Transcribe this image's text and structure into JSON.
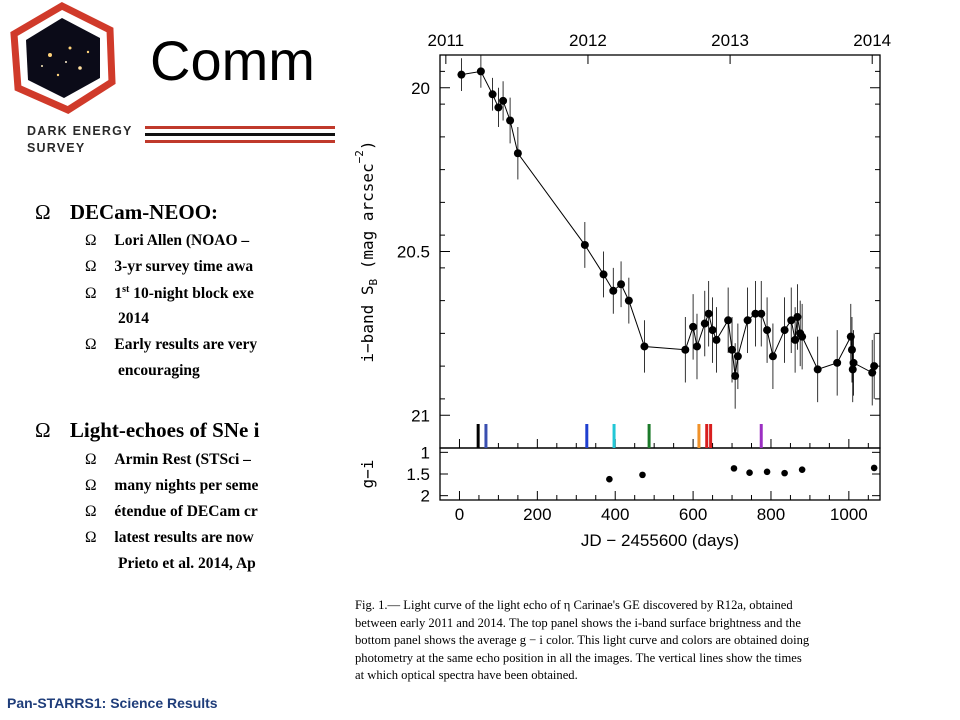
{
  "header": {
    "logo_text": [
      "DARK ENERGY",
      "SURVEY"
    ],
    "title": "Comm"
  },
  "bullets": [
    {
      "text": "DECam-NEOO:",
      "sub": [
        {
          "text": "Lori Allen (NOAO –"
        },
        {
          "text": "3-yr survey time awa"
        },
        {
          "pre": "1",
          "sup": "st",
          "text": " 10-night block exe",
          "cont": "2014"
        },
        {
          "text": "Early results are very",
          "cont": "encouraging"
        }
      ]
    },
    {
      "text": "Light-echoes of SNe i",
      "sub": [
        {
          "text": "Armin Rest (STSci –"
        },
        {
          "text": "many nights per seme"
        },
        {
          "text": "étendue of DECam cr"
        },
        {
          "text": "latest results are now",
          "cont": "Prieto et al. 2014, Ap"
        }
      ]
    }
  ],
  "bullet_marker": "Ω",
  "footer": "Pan-STARRS1: Science Results",
  "colors": {
    "footer": "#1f3d7a",
    "rule_red": "#c0392b",
    "logo_red": "#d03a2a"
  },
  "chart_data": [
    {
      "type": "scatter",
      "panel": "top",
      "top_axis_ticks": [
        "2011",
        "2012",
        "2013",
        "2014"
      ],
      "ylabel": "i−band S_B (mag arcsec⁻²)",
      "ylabel_main": "i−band S",
      "ylabel_sub": "B",
      "ylabel_rest": " (mag arcsec",
      "ylabel_sup": "−2",
      "ylabel_end": ")",
      "y_ticks": [
        "20",
        "20.5",
        "21"
      ],
      "y_tick_values": [
        20,
        20.5,
        21
      ],
      "y_reversed": true,
      "ylim": [
        19.9,
        21.1
      ],
      "xlim": [
        -50,
        1080
      ],
      "top_axis_tick_x": [
        -35,
        330,
        695,
        1060
      ],
      "connected": true,
      "points": [
        {
          "x": 5,
          "y": 19.96,
          "err": 0.05
        },
        {
          "x": 55,
          "y": 19.95,
          "err": 0.05
        },
        {
          "x": 85,
          "y": 20.02,
          "err": 0.05
        },
        {
          "x": 100,
          "y": 20.06,
          "err": 0.06
        },
        {
          "x": 112,
          "y": 20.04,
          "err": 0.06
        },
        {
          "x": 130,
          "y": 20.1,
          "err": 0.07
        },
        {
          "x": 150,
          "y": 20.2,
          "err": 0.08
        },
        {
          "x": 322,
          "y": 20.48,
          "err": 0.07
        },
        {
          "x": 370,
          "y": 20.57,
          "err": 0.07
        },
        {
          "x": 395,
          "y": 20.62,
          "err": 0.07
        },
        {
          "x": 415,
          "y": 20.6,
          "err": 0.07
        },
        {
          "x": 435,
          "y": 20.65,
          "err": 0.07
        },
        {
          "x": 475,
          "y": 20.79,
          "err": 0.08
        },
        {
          "x": 580,
          "y": 20.8,
          "err": 0.1
        },
        {
          "x": 600,
          "y": 20.73,
          "err": 0.1
        },
        {
          "x": 610,
          "y": 20.79,
          "err": 0.1
        },
        {
          "x": 630,
          "y": 20.72,
          "err": 0.1
        },
        {
          "x": 640,
          "y": 20.69,
          "err": 0.1
        },
        {
          "x": 650,
          "y": 20.74,
          "err": 0.1
        },
        {
          "x": 660,
          "y": 20.77,
          "err": 0.1
        },
        {
          "x": 690,
          "y": 20.71,
          "err": 0.1
        },
        {
          "x": 700,
          "y": 20.8,
          "err": 0.1
        },
        {
          "x": 708,
          "y": 20.88,
          "err": 0.1
        },
        {
          "x": 715,
          "y": 20.82,
          "err": 0.1
        },
        {
          "x": 740,
          "y": 20.71,
          "err": 0.1
        },
        {
          "x": 760,
          "y": 20.69,
          "err": 0.1
        },
        {
          "x": 775,
          "y": 20.69,
          "err": 0.1
        },
        {
          "x": 790,
          "y": 20.74,
          "err": 0.1
        },
        {
          "x": 805,
          "y": 20.82,
          "err": 0.1
        },
        {
          "x": 835,
          "y": 20.74,
          "err": 0.1
        },
        {
          "x": 852,
          "y": 20.71,
          "err": 0.1
        },
        {
          "x": 862,
          "y": 20.77,
          "err": 0.1
        },
        {
          "x": 868,
          "y": 20.7,
          "err": 0.1
        },
        {
          "x": 875,
          "y": 20.75,
          "err": 0.1
        },
        {
          "x": 880,
          "y": 20.76,
          "err": 0.1
        },
        {
          "x": 920,
          "y": 20.86,
          "err": 0.1
        },
        {
          "x": 970,
          "y": 20.84,
          "err": 0.1
        },
        {
          "x": 1005,
          "y": 20.76,
          "err": 0.1
        },
        {
          "x": 1008,
          "y": 20.8,
          "err": 0.1
        },
        {
          "x": 1010,
          "y": 20.86,
          "err": 0.1
        },
        {
          "x": 1012,
          "y": 20.84,
          "err": 0.1
        },
        {
          "x": 1060,
          "y": 20.87,
          "err": 0.1
        },
        {
          "x": 1065,
          "y": 20.85,
          "err": 0.1
        }
      ],
      "spectra_lines": [
        {
          "x": 48,
          "color": "#000000"
        },
        {
          "x": 68,
          "color": "#3a4fb0"
        },
        {
          "x": 327,
          "color": "#1f3fd0"
        },
        {
          "x": 397,
          "color": "#22c7d6"
        },
        {
          "x": 487,
          "color": "#1c7a2a"
        },
        {
          "x": 615,
          "color": "#f0922a"
        },
        {
          "x": 635,
          "color": "#d81e1e"
        },
        {
          "x": 645,
          "color": "#d81e1e"
        },
        {
          "x": 775,
          "color": "#9b2fc2"
        }
      ]
    },
    {
      "type": "scatter",
      "panel": "bottom",
      "xlabel": "JD − 2455600 (days)",
      "ylabel": "g−i",
      "x_ticks": [
        "0",
        "200",
        "400",
        "600",
        "800",
        "1000"
      ],
      "x_tick_values": [
        0,
        200,
        400,
        600,
        800,
        1000
      ],
      "y_ticks": [
        "2",
        "1.5",
        "1"
      ],
      "y_tick_values": [
        2,
        1.5,
        1
      ],
      "y_reversed": true,
      "ylim": [
        0.9,
        2.1
      ],
      "xlim": [
        -50,
        1080
      ],
      "points": [
        {
          "x": 385,
          "y": 1.62
        },
        {
          "x": 470,
          "y": 1.52
        },
        {
          "x": 705,
          "y": 1.37
        },
        {
          "x": 745,
          "y": 1.47
        },
        {
          "x": 790,
          "y": 1.45
        },
        {
          "x": 835,
          "y": 1.48
        },
        {
          "x": 880,
          "y": 1.4
        },
        {
          "x": 1065,
          "y": 1.36
        }
      ]
    }
  ],
  "caption": {
    "lines": [
      "Fig. 1.— Light curve of the light echo of η Carinae's GE discovered by R12a, obtained",
      "between early 2011 and 2014. The top panel shows the i-band surface brightness and the",
      "bottom panel shows the average g − i color. This light curve and colors are obtained doing",
      "photometry at the same echo position in all the images. The vertical lines show the times",
      "at which optical spectra have been obtained."
    ]
  }
}
